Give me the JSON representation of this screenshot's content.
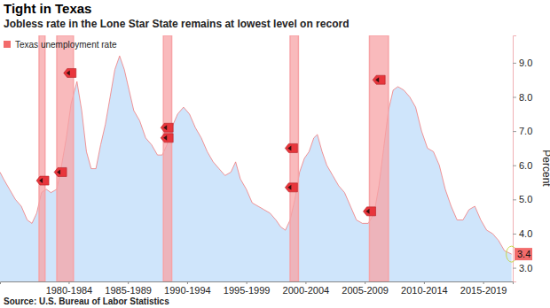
{
  "chart_data": {
    "type": "area",
    "title": "Tight in Texas",
    "subtitle": "Jobless rate in the Lone Star State remains at lowest level on record",
    "source": "Source: U.S. Bureau of Labor Statistics",
    "y_label": "Percent",
    "legend": "top-left",
    "grid": false,
    "xlim": [
      1976.7,
      2020.0
    ],
    "xticks": [
      {
        "value": 1982.5,
        "label": "1980-1984"
      },
      {
        "value": 1987.5,
        "label": "1985-1989"
      },
      {
        "value": 1992.5,
        "label": "1990-1994"
      },
      {
        "value": 1997.5,
        "label": "1995-1999"
      },
      {
        "value": 2002.5,
        "label": "2000-2004"
      },
      {
        "value": 2007.5,
        "label": "2005-2009"
      },
      {
        "value": 2012.5,
        "label": "2010-2014"
      },
      {
        "value": 2017.5,
        "label": "2015-2019"
      }
    ],
    "ylim": [
      2.6,
      9.8
    ],
    "yticks": [
      {
        "value": 3,
        "label": "3.0"
      },
      {
        "value": 4,
        "label": "4.0"
      },
      {
        "value": 5,
        "label": "5.0"
      },
      {
        "value": 6,
        "label": "6.0"
      },
      {
        "value": 7,
        "label": "7.0"
      },
      {
        "value": 8,
        "label": "8.0"
      },
      {
        "value": 9,
        "label": "9.0"
      }
    ],
    "recessions": [
      [
        1980.0,
        1980.5
      ],
      [
        1981.5,
        1982.9
      ],
      [
        1990.5,
        1991.2
      ],
      [
        2001.2,
        2001.9
      ],
      [
        2007.9,
        2009.5
      ]
    ],
    "recession_color": "#f7a3a6",
    "series": [
      {
        "name": "Texas unemployment rate",
        "type": "area",
        "color": "#f26b6b",
        "x": [
          1976.7,
          1977.0,
          1977.5,
          1978.0,
          1978.5,
          1979.0,
          1979.4,
          1979.8,
          1980.2,
          1980.6,
          1981.0,
          1981.5,
          1981.9,
          1982.3,
          1982.7,
          1983.2,
          1983.6,
          1984.0,
          1984.4,
          1984.8,
          1985.2,
          1985.6,
          1986.0,
          1986.4,
          1986.8,
          1987.2,
          1987.6,
          1988.0,
          1988.5,
          1989.0,
          1989.5,
          1990.0,
          1990.4,
          1990.8,
          1991.2,
          1991.7,
          1992.2,
          1992.7,
          1993.2,
          1993.7,
          1994.2,
          1994.7,
          1995.2,
          1995.7,
          1996.2,
          1996.6,
          1997.0,
          1997.5,
          1998.0,
          1998.5,
          1999.0,
          1999.5,
          2000.0,
          2000.4,
          2000.8,
          2001.2,
          2001.6,
          2002.0,
          2002.4,
          2002.8,
          2003.2,
          2003.5,
          2003.9,
          2004.3,
          2004.8,
          2005.3,
          2005.8,
          2006.3,
          2006.8,
          2007.3,
          2007.8,
          2008.3,
          2008.7,
          2009.1,
          2009.5,
          2009.9,
          2010.3,
          2010.8,
          2011.3,
          2011.8,
          2012.3,
          2012.8,
          2013.3,
          2013.8,
          2014.3,
          2014.8,
          2015.3,
          2015.8,
          2016.3,
          2016.8,
          2017.3,
          2017.8,
          2018.3,
          2018.8,
          2019.3,
          2019.9
        ],
        "values": [
          5.8,
          5.6,
          5.3,
          5.0,
          4.8,
          4.4,
          4.3,
          4.6,
          5.2,
          5.3,
          5.2,
          5.3,
          6.0,
          6.8,
          7.8,
          8.45,
          7.6,
          6.4,
          5.9,
          5.9,
          6.6,
          7.2,
          8.0,
          8.8,
          9.2,
          8.8,
          8.2,
          7.6,
          7.3,
          6.8,
          6.6,
          6.3,
          6.3,
          6.6,
          7.1,
          7.5,
          7.7,
          7.5,
          7.1,
          6.8,
          6.4,
          6.1,
          5.9,
          5.7,
          5.8,
          6.1,
          5.6,
          5.3,
          4.9,
          4.8,
          4.7,
          4.6,
          4.4,
          4.2,
          4.1,
          4.4,
          5.0,
          5.8,
          6.2,
          6.4,
          6.8,
          6.9,
          6.4,
          6.0,
          5.7,
          5.4,
          5.2,
          4.8,
          4.4,
          4.3,
          4.3,
          4.6,
          5.4,
          6.5,
          7.6,
          8.2,
          8.3,
          8.2,
          8.0,
          7.7,
          7.0,
          6.5,
          6.4,
          6.0,
          5.3,
          4.8,
          4.4,
          4.4,
          4.7,
          4.8,
          4.4,
          4.1,
          4.0,
          3.8,
          3.5,
          3.4
        ]
      },
      {
        "type": "scatter",
        "marker": "tag",
        "color": "#e8363c",
        "x": [
          1980.3,
          1981.8,
          1982.6,
          1990.8,
          1990.8,
          2001.3,
          2001.3,
          2007.9,
          2008.7
        ],
        "values": [
          5.55,
          5.8,
          8.7,
          7.1,
          6.8,
          6.5,
          5.35,
          4.65,
          8.5
        ]
      }
    ],
    "end_label": {
      "x": 2019.9,
      "value": 3.4,
      "color": "#f26b6b"
    }
  }
}
